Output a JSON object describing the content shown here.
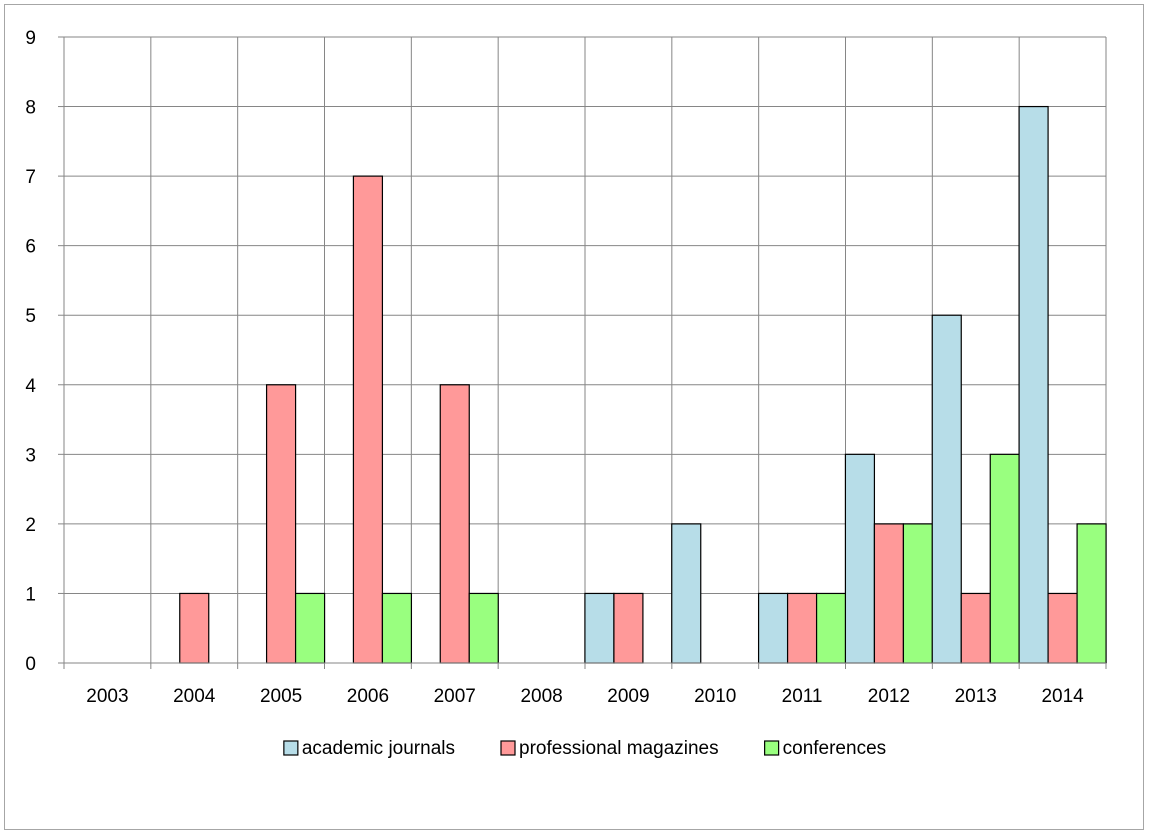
{
  "chart_data": {
    "type": "bar",
    "categories": [
      "2003",
      "2004",
      "2005",
      "2006",
      "2007",
      "2008",
      "2009",
      "2010",
      "2011",
      "2012",
      "2013",
      "2014"
    ],
    "series": [
      {
        "name": "academic journals",
        "values": [
          0,
          0,
          0,
          0,
          0,
          0,
          1,
          2,
          1,
          3,
          5,
          8
        ],
        "color": "#b7dde8"
      },
      {
        "name": "professional magazines",
        "values": [
          0,
          1,
          4,
          7,
          4,
          0,
          1,
          0,
          1,
          2,
          1,
          1
        ],
        "color": "#ff9999"
      },
      {
        "name": "conferences",
        "values": [
          0,
          0,
          1,
          1,
          1,
          0,
          0,
          0,
          1,
          2,
          3,
          2
        ],
        "color": "#99ff7f"
      }
    ],
    "yticks": [
      "0",
      "1",
      "2",
      "3",
      "4",
      "5",
      "6",
      "7",
      "8",
      "9"
    ],
    "ylim": [
      0,
      9
    ],
    "grid": true,
    "legend_position": "bottom",
    "title": "",
    "xlabel": "",
    "ylabel": ""
  }
}
